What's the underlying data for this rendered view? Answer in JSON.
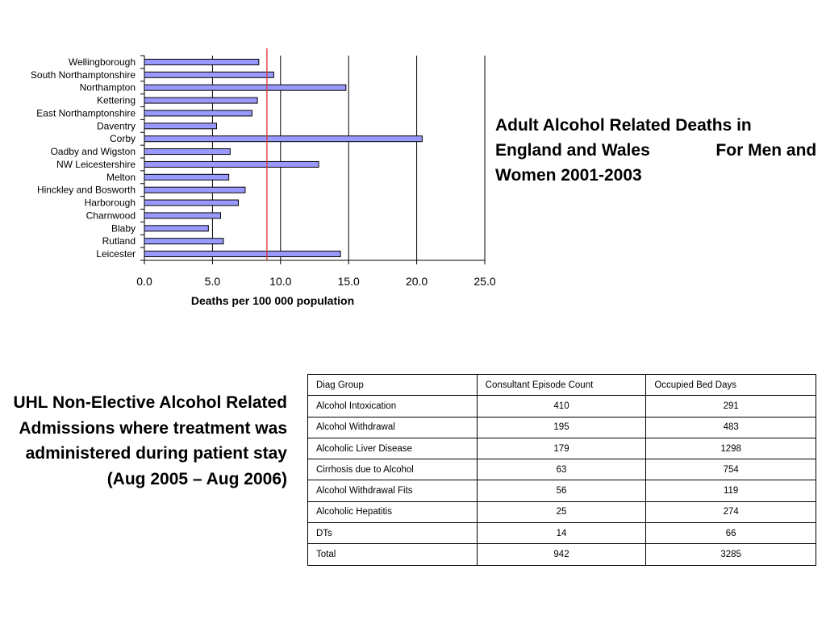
{
  "chart_data": {
    "type": "bar",
    "orientation": "horizontal",
    "categories": [
      "Wellingborough",
      "South Northamptonshire",
      "Northampton",
      "Kettering",
      "East Northamptonshire",
      "Daventry",
      "Corby",
      "Oadby and Wigston",
      "NW Leicestershire",
      "Melton",
      "Hinckley and Bosworth",
      "Harborough",
      "Charnwood",
      "Blaby",
      "Rutland",
      "Leicester"
    ],
    "values": [
      8.4,
      9.5,
      14.8,
      8.3,
      7.9,
      5.3,
      20.4,
      6.3,
      12.8,
      6.2,
      7.4,
      6.9,
      5.6,
      4.7,
      5.8,
      14.4
    ],
    "xlabel": "Deaths per 100 000 population",
    "xlim": [
      0,
      25
    ],
    "xticks": [
      "0.0",
      "5.0",
      "10.0",
      "15.0",
      "20.0",
      "25.0"
    ],
    "reference_line": 9.0,
    "grid": "vertical",
    "colors": {
      "bar_fill": "#9999ff",
      "bar_stroke": "#000000",
      "reference_line": "#e03030",
      "grid": "#000000"
    }
  },
  "title": "Adult Alcohol Related Deaths in England and Wales              For Men and Women 2001-2003",
  "caption": "UHL Non-Elective Alcohol Related Admissions where treatment was administered during patient stay (Aug 2005 – Aug 2006)",
  "table": {
    "headers": [
      "Diag Group",
      "Consultant Episode Count",
      "Occupied Bed Days"
    ],
    "rows": [
      [
        "Alcohol Intoxication",
        "410",
        "291"
      ],
      [
        "Alcohol Withdrawal",
        "195",
        "483"
      ],
      [
        "Alcoholic Liver Disease",
        "179",
        "1298"
      ],
      [
        "Cirrhosis due to Alcohol",
        "63",
        "754"
      ],
      [
        "Alcohol Withdrawal Fits",
        "56",
        "119"
      ],
      [
        "Alcoholic Hepatitis",
        "25",
        "274"
      ],
      [
        "DTs",
        "14",
        "66"
      ],
      [
        "Total",
        "942",
        "3285"
      ]
    ]
  }
}
